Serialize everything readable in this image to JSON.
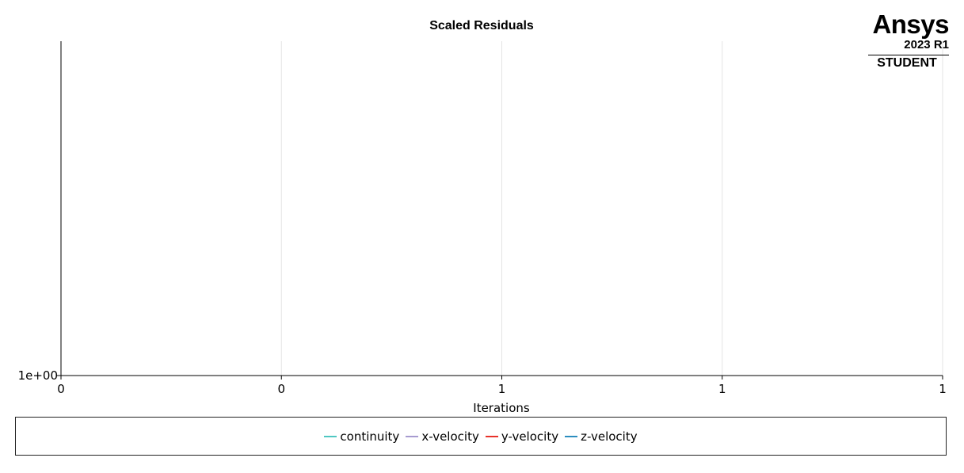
{
  "brand": {
    "name": "Ansys",
    "version": "2023 R1",
    "edition": "STUDENT"
  },
  "chart_data": {
    "type": "line",
    "title": "Scaled Residuals",
    "xlabel": "Iterations",
    "ylabel": "",
    "xlim": [
      0,
      1
    ],
    "y_scale": "log",
    "x_tick_labels": [
      "0",
      "0",
      "1",
      "1",
      "1"
    ],
    "y_tick_labels": [
      "1e+00"
    ],
    "grid": true,
    "legend_position": "bottom",
    "series": [
      {
        "name": "continuity",
        "color": "#4fc7c2",
        "x": [],
        "y": []
      },
      {
        "name": "x-velocity",
        "color": "#a79bd0",
        "x": [],
        "y": []
      },
      {
        "name": "y-velocity",
        "color": "#e8322a",
        "x": [],
        "y": []
      },
      {
        "name": "z-velocity",
        "color": "#2c8dbf",
        "x": [],
        "y": []
      }
    ]
  }
}
